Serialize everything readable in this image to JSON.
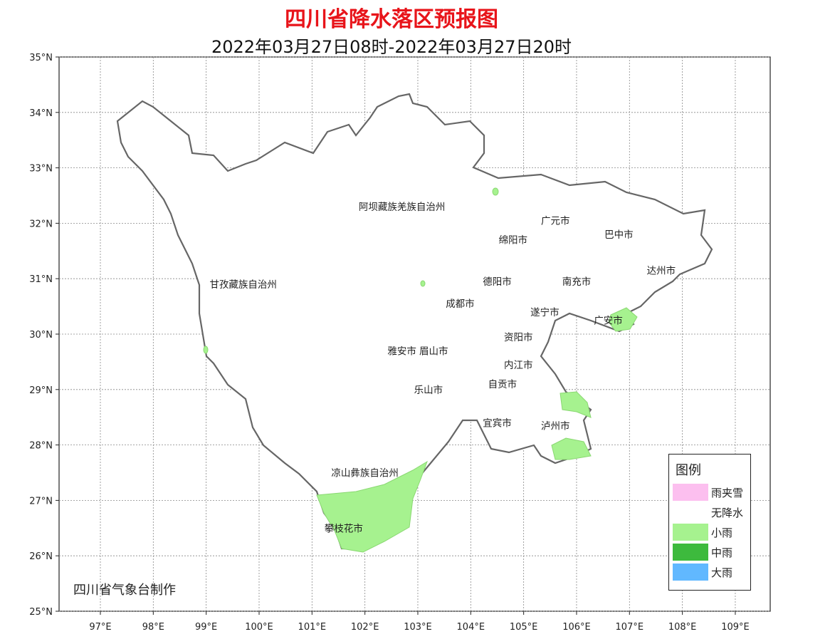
{
  "title": "四川省降水落区预报图",
  "subtitle": "2022年03月27日08时-2022年03月27日20时",
  "axes": {
    "lon_ticks": [
      "97°E",
      "98°E",
      "99°E",
      "100°E",
      "101°E",
      "102°E",
      "103°E",
      "104°E",
      "105°E",
      "106°E",
      "107°E",
      "108°E",
      "109°E"
    ],
    "lat_ticks": [
      "35°N",
      "34°N",
      "33°N",
      "32°N",
      "31°N",
      "30°N",
      "29°N",
      "28°N",
      "27°N",
      "26°N",
      "25°N"
    ],
    "grid": true
  },
  "regions": [
    {
      "name": "阿坝藏族羌族自治州",
      "lon": 102.7,
      "lat": 32.3
    },
    {
      "name": "甘孜藏族自治州",
      "lon": 99.7,
      "lat": 30.9
    },
    {
      "name": "广元市",
      "lon": 105.6,
      "lat": 32.05
    },
    {
      "name": "巴中市",
      "lon": 106.8,
      "lat": 31.8
    },
    {
      "name": "绵阳市",
      "lon": 104.8,
      "lat": 31.7
    },
    {
      "name": "达州市",
      "lon": 107.6,
      "lat": 31.15
    },
    {
      "name": "德阳市",
      "lon": 104.5,
      "lat": 30.95
    },
    {
      "name": "南充市",
      "lon": 106.0,
      "lat": 30.95
    },
    {
      "name": "成都市",
      "lon": 103.8,
      "lat": 30.55
    },
    {
      "name": "遂宁市",
      "lon": 105.4,
      "lat": 30.4
    },
    {
      "name": "广安市",
      "lon": 106.6,
      "lat": 30.25
    },
    {
      "name": "资阳市",
      "lon": 104.9,
      "lat": 29.95
    },
    {
      "name": "雅安市",
      "lon": 102.7,
      "lat": 29.7
    },
    {
      "name": "眉山市",
      "lon": 103.3,
      "lat": 29.7
    },
    {
      "name": "内江市",
      "lon": 104.9,
      "lat": 29.45
    },
    {
      "name": "乐山市",
      "lon": 103.2,
      "lat": 29.0
    },
    {
      "name": "自贡市",
      "lon": 104.6,
      "lat": 29.1
    },
    {
      "name": "宜宾市",
      "lon": 104.5,
      "lat": 28.4
    },
    {
      "name": "泸州市",
      "lon": 105.6,
      "lat": 28.35
    },
    {
      "name": "凉山彝族自治州",
      "lon": 102.0,
      "lat": 27.5
    },
    {
      "name": "攀枝花市",
      "lon": 101.6,
      "lat": 26.5
    }
  ],
  "legend": {
    "title": "图例",
    "items": [
      {
        "label": "雨夹雪",
        "color": "#fcbfef"
      },
      {
        "label": "无降水",
        "color": "#ffffff"
      },
      {
        "label": "小雨",
        "color": "#a6f28f"
      },
      {
        "label": "中雨",
        "color": "#3dba3d"
      },
      {
        "label": "大雨",
        "color": "#61b8ff"
      }
    ]
  },
  "credit": "四川省气象台制作"
}
